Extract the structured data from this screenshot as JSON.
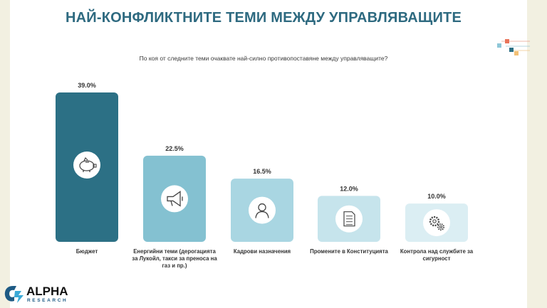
{
  "title": "НАЙ-КОНФЛИКТНИТЕ ТЕМИ МЕЖДУ УПРАВЛЯВАЩИТЕ",
  "question": "По коя от следните теми очаквате най-силно противопоставяне между управляващите?",
  "chart_data": {
    "type": "bar",
    "title": "",
    "xlabel": "",
    "ylabel": "",
    "ylim": [
      0,
      39
    ],
    "grid": false,
    "legend": "none",
    "categories": [
      [
        "Бюджет"
      ],
      [
        "Енергийни теми (дерогацията",
        "за Лукойл, такси за преноса на",
        "газ и пр.)"
      ],
      [
        "Кадрови назначения"
      ],
      [
        "Промените в Конституцията"
      ],
      [
        "Контрола над службите за",
        "сигурност"
      ]
    ],
    "values": [
      39.0,
      22.5,
      16.5,
      12.0,
      10.0
    ],
    "value_labels": [
      "39.0%",
      "22.5%",
      "16.5%",
      "12.0%",
      "10.0%"
    ],
    "icons": [
      "piggy-bank-icon",
      "megaphone-icon",
      "person-icon",
      "document-icon",
      "gears-icon"
    ],
    "colors": [
      "#2c7085",
      "#84c1d1",
      "#a9d6e2",
      "#c6e4ec",
      "#dbeef3"
    ]
  },
  "logo": {
    "main": "ALPHA",
    "sub": "RESEARCH"
  },
  "colors": {
    "title": "#2e6a80",
    "background": "#f2f0e1"
  }
}
